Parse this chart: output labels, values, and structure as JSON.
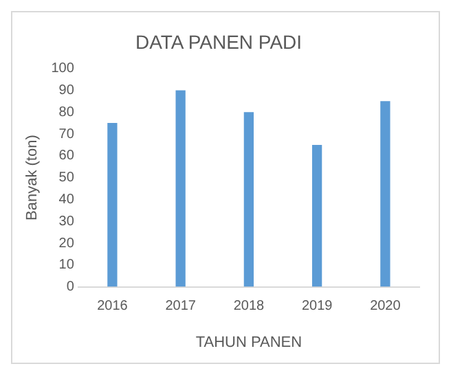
{
  "chart_data": {
    "type": "bar",
    "title": "DATA PANEN PADI",
    "xlabel": "TAHUN PANEN",
    "ylabel": "Banyak (ton)",
    "categories": [
      "2016",
      "2017",
      "2018",
      "2019",
      "2020"
    ],
    "values": [
      75,
      90,
      80,
      65,
      85
    ],
    "color": "#5b9bd5",
    "ylim": [
      0,
      100
    ],
    "yticks": [
      0,
      10,
      20,
      30,
      40,
      50,
      60,
      70,
      80,
      90,
      100
    ],
    "grid": false,
    "legend": false
  }
}
